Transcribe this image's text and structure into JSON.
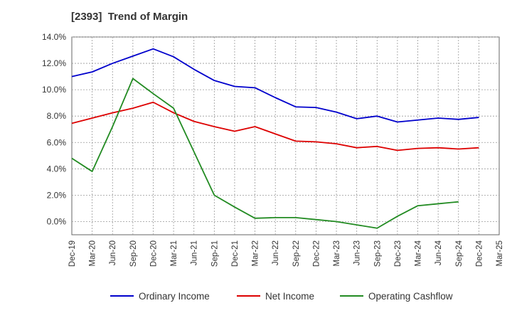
{
  "chart_data": {
    "type": "line",
    "title": "[2393]  Trend of Margin",
    "xlabel": "",
    "ylabel": "",
    "x": [
      "Dec-19",
      "Mar-20",
      "Jun-20",
      "Sep-20",
      "Dec-20",
      "Mar-21",
      "Jun-21",
      "Sep-21",
      "Dec-21",
      "Mar-22",
      "Jun-22",
      "Sep-22",
      "Dec-22",
      "Mar-23",
      "Jun-23",
      "Sep-23",
      "Dec-23",
      "Mar-24",
      "Jun-24",
      "Sep-24",
      "Dec-24",
      "Mar-25"
    ],
    "y_ticks": [
      "0.0%",
      "2.0%",
      "4.0%",
      "6.0%",
      "8.0%",
      "10.0%",
      "12.0%",
      "14.0%"
    ],
    "ylim": [
      -1.0,
      14.0
    ],
    "grid": true,
    "legend_position": "bottom",
    "series": [
      {
        "name": "Ordinary Income",
        "color": "#0000cc",
        "values": [
          11.0,
          11.35,
          12.0,
          12.55,
          13.1,
          12.5,
          11.55,
          10.7,
          10.25,
          10.15,
          9.4,
          8.7,
          8.65,
          8.3,
          7.8,
          8.0,
          7.55,
          7.7,
          7.85,
          7.75,
          7.9,
          null
        ]
      },
      {
        "name": "Net Income",
        "color": "#dd0000",
        "values": [
          7.45,
          7.85,
          8.25,
          8.6,
          9.05,
          8.25,
          7.6,
          7.2,
          6.85,
          7.2,
          6.65,
          6.1,
          6.05,
          5.9,
          5.6,
          5.7,
          5.4,
          5.55,
          5.6,
          5.5,
          5.6,
          null
        ]
      },
      {
        "name": "Operating Cashflow",
        "color": "#228b22",
        "values": [
          4.8,
          3.8,
          7.2,
          10.85,
          9.7,
          8.6,
          5.3,
          2.0,
          1.1,
          0.25,
          0.3,
          0.3,
          0.15,
          0.0,
          -0.25,
          -0.5,
          0.4,
          1.2,
          1.35,
          1.5,
          null,
          null
        ]
      }
    ]
  }
}
